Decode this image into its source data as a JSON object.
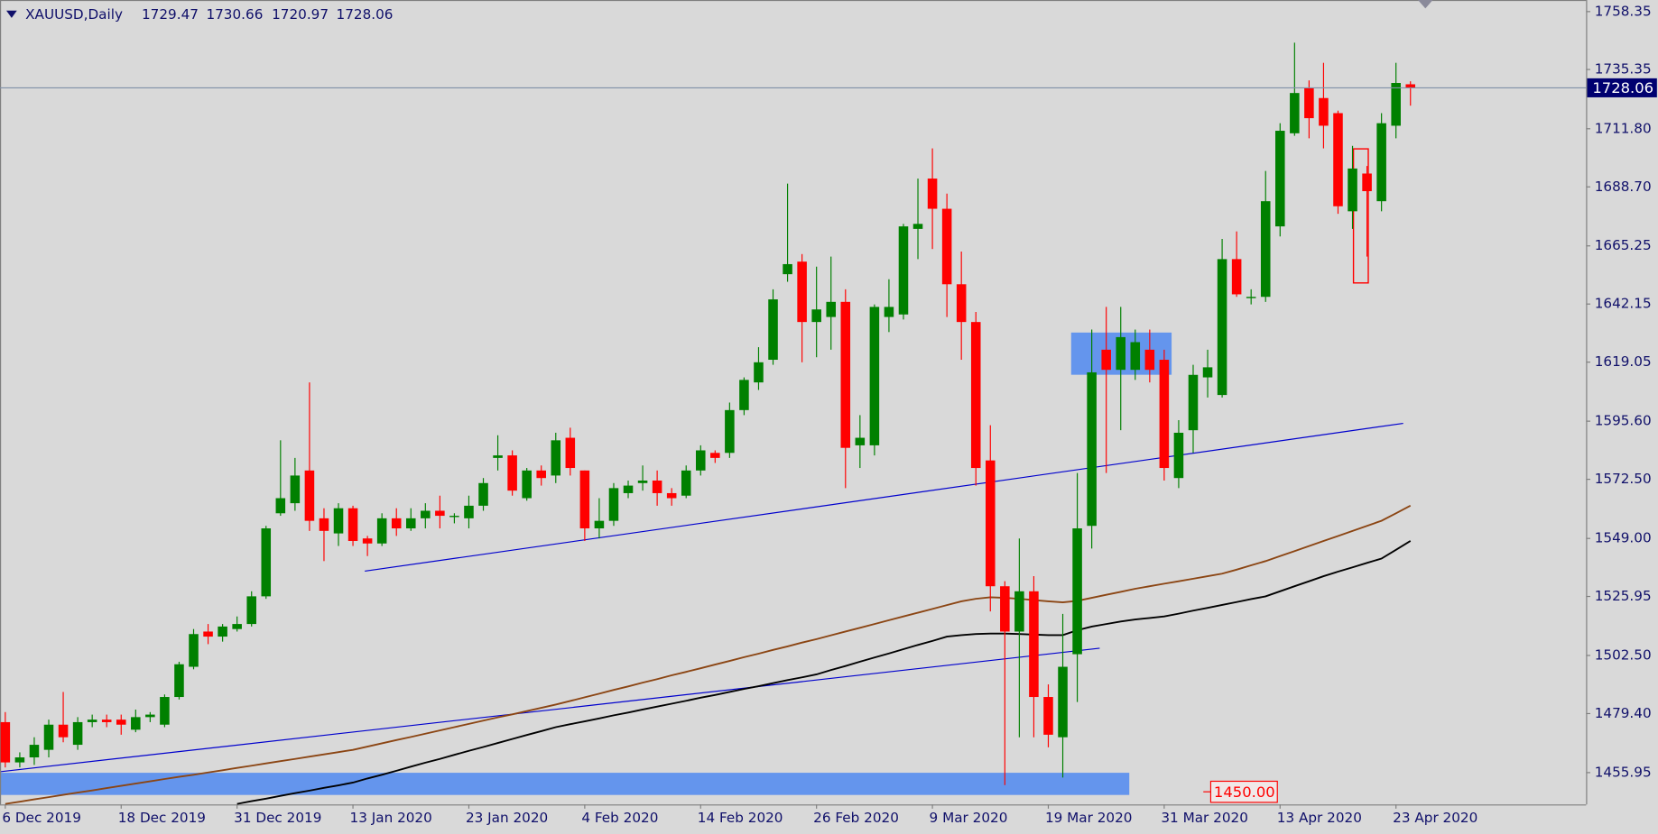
{
  "chart_data": {
    "type": "candlestick",
    "symbol": "XAUUSD,Daily",
    "categories": [
      "6 Dec 2019",
      null,
      null,
      null,
      null,
      null,
      null,
      null,
      "18 Dec 2019",
      null,
      null,
      null,
      null,
      null,
      null,
      null,
      "31 Dec 2019",
      null,
      null,
      null,
      null,
      null,
      null,
      null,
      "13 Jan 2020",
      null,
      null,
      null,
      null,
      null,
      null,
      null,
      "23 Jan 2020",
      null,
      null,
      null,
      null,
      null,
      null,
      null,
      "4 Feb 2020",
      null,
      null,
      null,
      null,
      null,
      null,
      null,
      "14 Feb 2020",
      null,
      null,
      null,
      null,
      null,
      null,
      null,
      "26 Feb 2020",
      null,
      null,
      null,
      null,
      null,
      null,
      null,
      "9 Mar 2020",
      null,
      null,
      null,
      null,
      null,
      null,
      null,
      "19 Mar 2020",
      null,
      null,
      null,
      null,
      null,
      null,
      null,
      "31 Mar 2020",
      null,
      null,
      null,
      null,
      null,
      null,
      null,
      "13 Apr 2020",
      null,
      null,
      null,
      null,
      null,
      null,
      null,
      "23 Apr 2020",
      null
    ],
    "open": [
      1476,
      1460,
      1462,
      1465,
      1475,
      1467,
      1476,
      1477,
      1477,
      1473,
      1478,
      1475,
      1486,
      1498,
      1512,
      1510,
      1513,
      1515,
      1526,
      1559,
      1563,
      1576,
      1557,
      1551,
      1561,
      1549,
      1547,
      1557,
      1553,
      1557,
      1560,
      1558,
      1557,
      1562,
      1581,
      1582,
      1565,
      1576,
      1574,
      1589,
      1576,
      1553,
      1556,
      1567,
      1571,
      1572,
      1567,
      1566,
      1576,
      1583,
      1583,
      1600,
      1611,
      1620,
      1654,
      1659,
      1635,
      1637,
      1643,
      1586,
      1586,
      1637,
      1638,
      1672,
      1692,
      1680,
      1650,
      1635,
      1580,
      1530,
      1512,
      1528,
      1486,
      1470,
      1503,
      1554,
      1624,
      1616,
      1616,
      1624,
      1620,
      1573,
      1592,
      1613,
      1606,
      1660,
      1645,
      1645,
      1673,
      1710,
      1728,
      1724,
      1718,
      1679,
      1694,
      1683,
      1713,
      1729.47
    ],
    "high": [
      1480,
      1464,
      1470,
      1477,
      1488,
      1478,
      1479,
      1479,
      1479,
      1481,
      1480,
      1487,
      1500,
      1513,
      1515,
      1515,
      1518,
      1528,
      1554,
      1588,
      1581,
      1611,
      1561,
      1563,
      1562,
      1550,
      1559,
      1561,
      1561,
      1563,
      1566,
      1559,
      1566,
      1573,
      1590,
      1584,
      1577,
      1578,
      1591,
      1593,
      1576,
      1565,
      1571,
      1572,
      1578,
      1576,
      1569,
      1578,
      1586,
      1584,
      1603,
      1613,
      1625,
      1648,
      1690,
      1662,
      1657,
      1661,
      1648,
      1598,
      1642,
      1652,
      1674,
      1692,
      1704,
      1686,
      1663,
      1639,
      1594,
      1532,
      1549,
      1534,
      1491,
      1519,
      1575,
      1632,
      1641,
      1641,
      1632,
      1632,
      1624,
      1596,
      1618,
      1624,
      1668,
      1671,
      1648,
      1695,
      1714,
      1746,
      1731,
      1738,
      1719,
      1705,
      1697,
      1718,
      1738,
      1730.66
    ],
    "low": [
      1458,
      1458,
      1459,
      1462,
      1468,
      1465,
      1474,
      1474,
      1471,
      1472,
      1476,
      1474,
      1485,
      1497,
      1507,
      1508,
      1512,
      1514,
      1525,
      1558,
      1560,
      1552,
      1540,
      1546,
      1546,
      1542,
      1546,
      1550,
      1552,
      1553,
      1553,
      1555,
      1553,
      1560,
      1576,
      1566,
      1564,
      1570,
      1571,
      1574,
      1548,
      1549,
      1554,
      1565,
      1568,
      1562,
      1562,
      1565,
      1574,
      1579,
      1581,
      1598,
      1608,
      1618,
      1651,
      1619,
      1621,
      1624,
      1569,
      1577,
      1582,
      1631,
      1636,
      1660,
      1664,
      1637,
      1620,
      1570,
      1520,
      1451,
      1470,
      1470,
      1466,
      1454,
      1484,
      1545,
      1575,
      1592,
      1612,
      1611,
      1572,
      1569,
      1583,
      1605,
      1605,
      1645,
      1642,
      1643,
      1669,
      1709,
      1708,
      1704,
      1678,
      1672,
      1661,
      1679,
      1708,
      1720.97
    ],
    "close": [
      1460,
      1462,
      1467,
      1475,
      1470,
      1476,
      1477,
      1476,
      1475,
      1478,
      1479,
      1486,
      1499,
      1511,
      1510,
      1514,
      1515,
      1526,
      1553,
      1565,
      1574,
      1556,
      1552,
      1561,
      1548,
      1547,
      1557,
      1553,
      1557,
      1560,
      1558,
      1558,
      1562,
      1571,
      1582,
      1568,
      1576,
      1573,
      1588,
      1577,
      1553,
      1556,
      1569,
      1570,
      1572,
      1567,
      1565,
      1576,
      1584,
      1581,
      1600,
      1612,
      1619,
      1644,
      1658,
      1635,
      1640,
      1643,
      1585,
      1589,
      1641,
      1641,
      1673,
      1674,
      1680,
      1650,
      1635,
      1577,
      1530,
      1512,
      1528,
      1486,
      1471,
      1498,
      1553,
      1615,
      1616,
      1629,
      1627,
      1616,
      1577,
      1591,
      1614,
      1617,
      1660,
      1646,
      1645,
      1683,
      1711,
      1726,
      1716,
      1713,
      1681,
      1696,
      1687,
      1714,
      1730,
      1728.06
    ],
    "up_color": "#008000",
    "down_color": "#ff0000",
    "moving_averages": [
      {
        "color": "#8b4513",
        "values": [
          1443.5,
          1444.4,
          1445.3,
          1446.2,
          1447.1,
          1448.0,
          1448.9,
          1449.8,
          1450.7,
          1451.6,
          1452.5,
          1453.4,
          1454.3,
          1455.1,
          1456.0,
          1456.9,
          1457.8,
          1458.7,
          1459.6,
          1460.5,
          1461.4,
          1462.3,
          1463.2,
          1464.1,
          1465.0,
          1466.3,
          1467.6,
          1468.9,
          1470.1,
          1471.4,
          1472.7,
          1474.0,
          1475.3,
          1476.6,
          1477.9,
          1479.1,
          1480.4,
          1481.7,
          1483.0,
          1484.4,
          1485.9,
          1487.3,
          1488.8,
          1490.2,
          1491.7,
          1493.1,
          1494.6,
          1496.0,
          1497.4,
          1498.9,
          1500.3,
          1501.8,
          1503.2,
          1504.7,
          1506.1,
          1507.6,
          1509.0,
          1510.5,
          1512.0,
          1513.5,
          1515.0,
          1516.5,
          1518.0,
          1519.5,
          1521.0,
          1522.5,
          1524.0,
          1525.0,
          1525.6,
          1525.4,
          1525.0,
          1524.5,
          1524.0,
          1523.6,
          1524.2,
          1525.4,
          1526.6,
          1527.8,
          1529.0,
          1530.0,
          1531.0,
          1532.0,
          1533.0,
          1534.0,
          1535.0,
          1536.6,
          1538.3,
          1540.0,
          1542.0,
          1544.0,
          1546.0,
          1548.0,
          1550.0,
          1552.0,
          1554.0,
          1556.0,
          1559.0,
          1562.0
        ]
      },
      {
        "color": "#000000",
        "values": [
          null,
          null,
          null,
          null,
          null,
          null,
          null,
          null,
          null,
          null,
          null,
          null,
          null,
          null,
          null,
          null,
          1443.5,
          1444.6,
          1445.6,
          1446.7,
          1447.8,
          1448.8,
          1449.9,
          1450.9,
          1452.0,
          1453.6,
          1455.1,
          1456.7,
          1458.3,
          1459.9,
          1461.4,
          1463.0,
          1464.6,
          1466.1,
          1467.7,
          1469.3,
          1470.9,
          1472.4,
          1474.0,
          1475.2,
          1476.3,
          1477.5,
          1478.7,
          1479.8,
          1481.0,
          1482.2,
          1483.3,
          1484.5,
          1485.7,
          1486.8,
          1488.0,
          1489.2,
          1490.3,
          1491.5,
          1492.7,
          1493.8,
          1495.0,
          1496.7,
          1498.3,
          1500.0,
          1501.7,
          1503.3,
          1505.0,
          1506.7,
          1508.3,
          1510.0,
          1510.6,
          1511.0,
          1511.2,
          1511.2,
          1511.0,
          1510.8,
          1510.6,
          1510.6,
          1512.5,
          1514.0,
          1515.0,
          1516.0,
          1516.8,
          1517.4,
          1518.0,
          1519.1,
          1520.3,
          1521.4,
          1522.6,
          1523.7,
          1524.9,
          1526.0,
          1528.0,
          1530.0,
          1532.0,
          1534.0,
          1535.8,
          1537.5,
          1539.3,
          1541.0,
          1544.5,
          1548.0
        ]
      }
    ],
    "ylim": [
      1443.3,
      1762.96
    ],
    "yticks": [
      1758.35,
      1735.35,
      {
        "value": 1711.8,
        "label": "1711.80"
      },
      {
        "value": 1688.7,
        "label": "1688.70"
      },
      1665.25,
      1642.15,
      1619.05,
      {
        "value": 1595.6,
        "label": "1595.60"
      },
      {
        "value": 1572.5,
        "label": "1572.50"
      },
      {
        "value": 1549,
        "label": "1549.00"
      },
      1525.95,
      {
        "value": 1502.5,
        "label": "1502.50"
      },
      {
        "value": 1479.4,
        "label": "1479.40"
      },
      1455.95
    ],
    "annotations": [
      {
        "value": 1450,
        "label": "1450.00",
        "color": "#ff0000"
      }
    ]
  }
}
